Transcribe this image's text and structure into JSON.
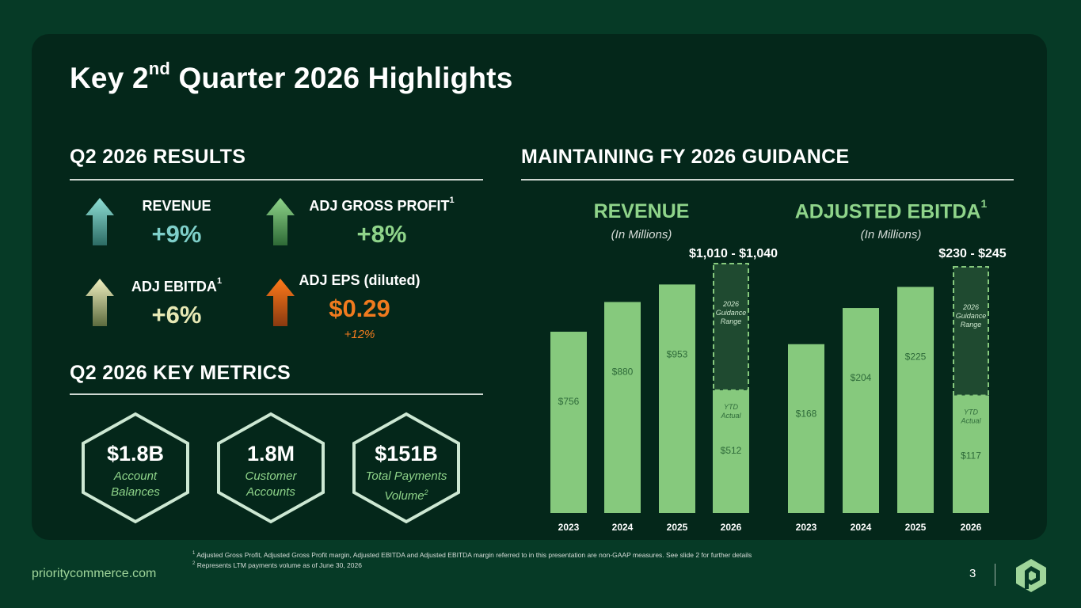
{
  "title": {
    "main_pre": "Key 2",
    "main_sup": "nd",
    "main_post": " Quarter 2026 Highlights"
  },
  "results": {
    "heading": "Q2 2026 RESULTS",
    "kpis": [
      {
        "label": "REVENUE",
        "sup": "",
        "value": "+9%",
        "sub": "",
        "color": "#7ecfc9"
      },
      {
        "label": "ADJ GROSS PROFIT",
        "sup": "1",
        "value": "+8%",
        "sub": "",
        "color": "#8fd48a"
      },
      {
        "label": "ADJ EBITDA",
        "sup": "1",
        "value": "+6%",
        "sub": "",
        "color": "#e6e8b4"
      },
      {
        "label": "ADJ EPS (diluted)",
        "sup": "",
        "value": "$0.29",
        "sub": "+12%",
        "color": "#f07a1e"
      }
    ]
  },
  "metrics": {
    "heading": "Q2 2026 KEY METRICS",
    "items": [
      {
        "value": "$1.8B",
        "sub1": "Account",
        "sub2": "Balances",
        "sup": ""
      },
      {
        "value": "1.8M",
        "sub1": "Customer",
        "sub2": "Accounts",
        "sup": ""
      },
      {
        "value": "$151B",
        "sub1": "Total Payments",
        "sub2": "Volume",
        "sup": "2"
      }
    ]
  },
  "guidance": {
    "heading": "MAINTAINING FY 2026 GUIDANCE"
  },
  "chart_data": [
    {
      "type": "bar",
      "title": "REVENUE",
      "title_sup": "",
      "subtitle": "(In Millions)",
      "categories": [
        "2023",
        "2024",
        "2025",
        "2026"
      ],
      "values": [
        756,
        880,
        953,
        512
      ],
      "value_labels": [
        "$756",
        "$880",
        "$953",
        "$512"
      ],
      "guidance_range": [
        1010,
        1040
      ],
      "guidance_label": "$1,010 - $1,040",
      "guidance_note": [
        "2026",
        "Guidance",
        "Range"
      ],
      "ytd_note": [
        "YTD",
        "Actual"
      ],
      "ylim": [
        0,
        1040
      ],
      "bar_color": "#86c97d",
      "guidance_color": "#1f4a30"
    },
    {
      "type": "bar",
      "title": "ADJUSTED EBITDA",
      "title_sup": "1",
      "subtitle": "(In Millions)",
      "categories": [
        "2023",
        "2024",
        "2025",
        "2026"
      ],
      "values": [
        168,
        204,
        225,
        117
      ],
      "value_labels": [
        "$168",
        "$204",
        "$225",
        "$117"
      ],
      "guidance_range": [
        230,
        245
      ],
      "guidance_label": "$230 - $245",
      "guidance_note": [
        "2026",
        "Guidance",
        "Range"
      ],
      "ytd_note": [
        "YTD",
        "Actual"
      ],
      "ylim": [
        0,
        245
      ],
      "bar_color": "#86c97d",
      "guidance_color": "#1f4a30"
    }
  ],
  "footer": {
    "website": "prioritycommerce.com",
    "note1_sup": "1",
    "note1": "Adjusted Gross Profit, Adjusted Gross Profit margin, Adjusted EBITDA and Adjusted EBITDA margin referred to in this presentation are non-GAAP measures. See slide 2 for further details",
    "note2_sup": "2",
    "note2": "Represents LTM payments volume as of June 30, 2026",
    "page": "3"
  }
}
